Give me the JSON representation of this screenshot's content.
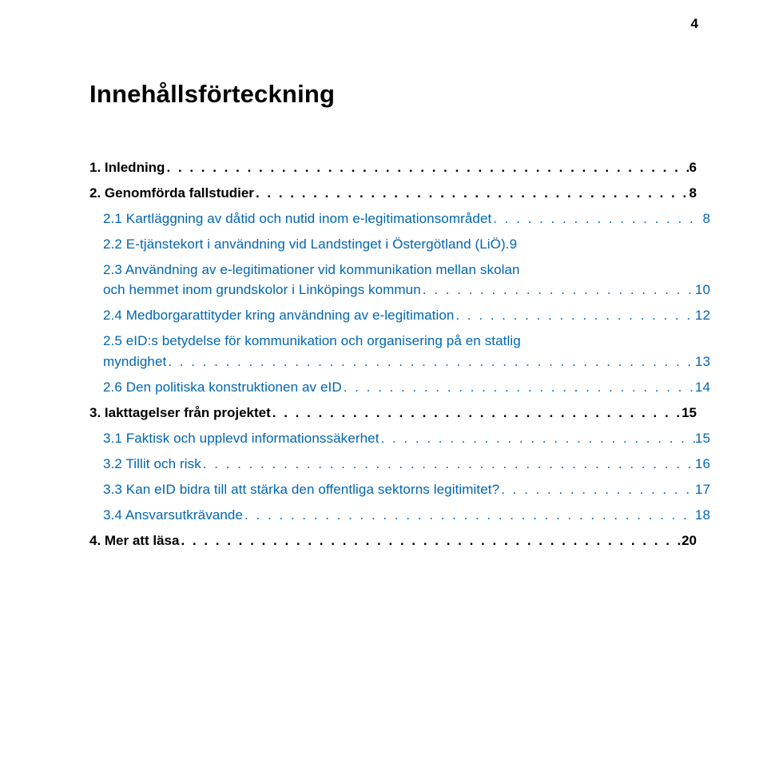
{
  "page_number": "4",
  "title": "Innehållsförteckning",
  "dots_fill": ". . . . . . . . . . . . . . . . . . . . . . . . . . . . . . . . . . . . . . . . . . . . . . . . . . . . . . . . . . . . . . . . . . . . . . . . . . . . . . . . . . . . . . . . . . . . . . . . . . . . . . . . . . . . . . . .",
  "colors": {
    "text_primary": "#000000",
    "text_link": "#0066b3",
    "background": "#ffffff"
  },
  "typography": {
    "font_family": "Verdana",
    "title_fontsize": 31,
    "title_weight": "bold",
    "body_fontsize": 17,
    "lvl1_weight": "bold",
    "lvl2_weight": "normal"
  },
  "lines": [
    {
      "level": 1,
      "label": "1. Inledning",
      "page": "6"
    },
    {
      "level": 1,
      "label": "2. Genomförda fallstudier",
      "page": "8"
    },
    {
      "level": 2,
      "label": "2.1 Kartläggning av dåtid och nutid inom e-legitimationsområdet",
      "page": "8"
    },
    {
      "level": 2,
      "pre": "2.2 E-tjänstekort i användning vid Landstinget i Östergötland (LiÖ).",
      "label_tail": "",
      "page": "9",
      "multi": true,
      "tail_label": "",
      "no_dots": false,
      "tail": ""
    },
    {
      "level": 2,
      "pre": "2.3 Användning av e-legitimationer vid kommunikation mellan skolan",
      "tail_label": "och hemmet inom grundskolor i Linköpings kommun",
      "page": "10",
      "multi": true
    },
    {
      "level": 2,
      "label": "2.4 Medborgarattityder kring användning av e-legitimation",
      "page": "12"
    },
    {
      "level": 2,
      "pre": "2.5 eID:s betydelse för kommunikation och organisering på en statlig",
      "tail_label": "myndighet",
      "page": "13",
      "multi": true
    },
    {
      "level": 2,
      "label": "2.6 Den politiska konstruktionen av eID",
      "page": "14"
    },
    {
      "level": 1,
      "label": "3. Iakttagelser från projektet",
      "page": "15"
    },
    {
      "level": 2,
      "label": "3.1 Faktisk och upplevd informationssäkerhet",
      "page": "15"
    },
    {
      "level": 2,
      "label": "3.2 Tillit och risk",
      "page": "16"
    },
    {
      "level": 2,
      "label": "3.3 Kan eID bidra till att stärka den offentliga sektorns legitimitet?",
      "page": "17"
    },
    {
      "level": 2,
      "label": "3.4 Ansvarsutkrävande",
      "page": "18"
    },
    {
      "level": 1,
      "label": "4. Mer att läsa",
      "page": "20"
    }
  ]
}
